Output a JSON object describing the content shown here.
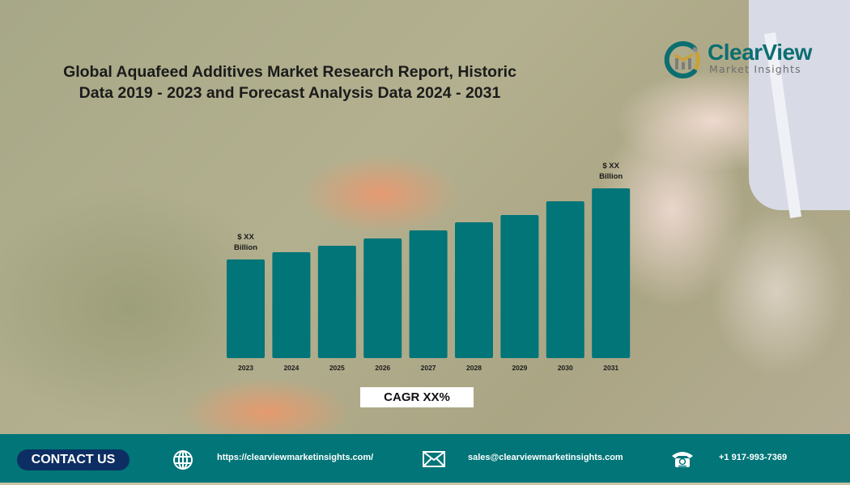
{
  "header": {
    "title_line1": "Global Aquafeed Additives Market Research Report, Historic",
    "title_line2": "Data 2019 - 2023 and Forecast Analysis Data 2024 - 2031"
  },
  "logo": {
    "name": "ClearView",
    "tagline": "Market Insights",
    "colors": {
      "teal": "#0b6e71",
      "gold": "#c9a13a",
      "gray": "#6e6e6e"
    }
  },
  "chart_data": {
    "type": "bar",
    "title": "Global Aquafeed Additives Market Research Report, Historic Data 2019 - 2023 and Forecast Analysis Data 2024 - 2031",
    "xlabel": "",
    "ylabel": "",
    "categories": [
      "2023",
      "2024",
      "2025",
      "2026",
      "2027",
      "2028",
      "2029",
      "2030",
      "2031"
    ],
    "values": [
      122,
      131,
      139,
      148,
      158,
      168,
      177,
      194,
      210
    ],
    "value_note": "relative bar heights (index units); actual values not disclosed",
    "ylim": [
      0,
      210
    ],
    "grid": false,
    "bar_color": "#017578",
    "annotations": [
      {
        "category": "2023",
        "line1": "$ XX",
        "line2": "Billion"
      },
      {
        "category": "2031",
        "line1": "$ XX",
        "line2": "Billion"
      }
    ],
    "cagr_label": "CAGR XX%"
  },
  "footer": {
    "contact_label": "CONTACT US",
    "website": "https://clearviewmarketinsights.com/",
    "email": "sales@clearviewmarketinsights.com",
    "phone": "+1 917-993-7369",
    "icons": [
      "globe-icon",
      "envelope-icon",
      "telephone-icon"
    ],
    "background": "#017578",
    "button_color": "#0d2e63"
  }
}
